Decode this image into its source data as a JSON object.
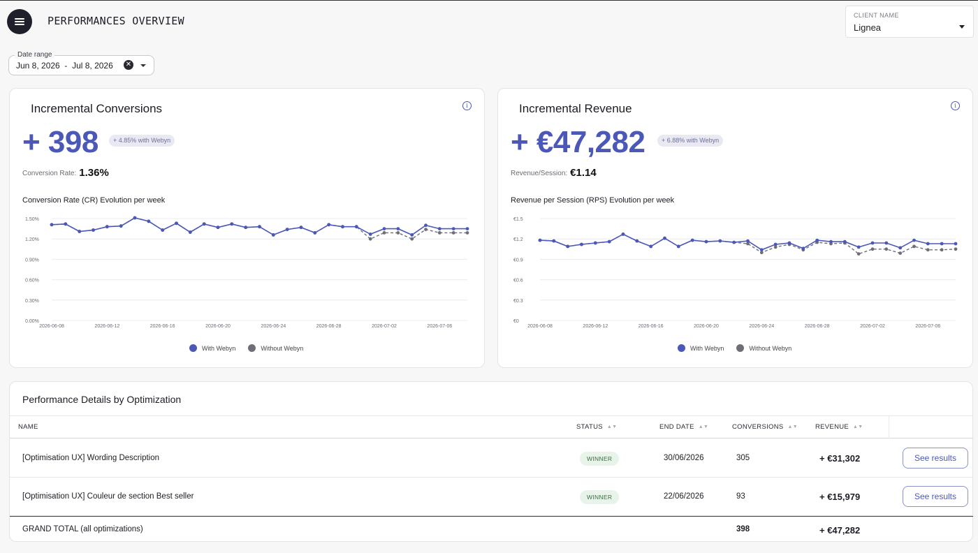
{
  "header": {
    "title": "PERFORMANCES OVERVIEW",
    "client_label": "CLIENT NAME",
    "client_value": "Lignea"
  },
  "date_range": {
    "label": "Date range",
    "start": "Jun 8, 2026",
    "separator": "-",
    "end": "Jul 8, 2026"
  },
  "kpis": [
    {
      "title": "Incremental Conversions",
      "value": "+ 398",
      "badge": "+ 4.85% with Webyn",
      "sub_label": "Conversion Rate:",
      "sub_value": "1.36%",
      "chart_title": "Conversion Rate (CR) Evolution per week"
    },
    {
      "title": "Incremental Revenue",
      "value": "+ €47,282",
      "badge": "+ 6.88% with Webyn",
      "sub_label": "Revenue/Session:",
      "sub_value": "€1.14",
      "chart_title": "Revenue per Session (RPS) Evolution per week"
    }
  ],
  "legend": {
    "with": "With Webyn",
    "without": "Without Webyn"
  },
  "colors": {
    "with": "#4b58b8",
    "without": "#6e6e78",
    "accent": "#4b58b8"
  },
  "chart_data": [
    {
      "type": "line",
      "x": [
        "2026-06-08",
        "2026-06-09",
        "2026-06-10",
        "2026-06-11",
        "2026-06-12",
        "2026-06-13",
        "2026-06-14",
        "2026-06-15",
        "2026-06-16",
        "2026-06-17",
        "2026-06-18",
        "2026-06-19",
        "2026-06-20",
        "2026-06-21",
        "2026-06-22",
        "2026-06-23",
        "2026-06-24",
        "2026-06-25",
        "2026-06-26",
        "2026-06-27",
        "2026-06-28",
        "2026-06-29",
        "2026-06-30",
        "2026-07-01",
        "2026-07-02",
        "2026-07-03",
        "2026-07-04",
        "2026-07-05",
        "2026-07-06",
        "2026-07-07",
        "2026-07-08"
      ],
      "xticks": [
        "2026-06-08",
        "2026-06-12",
        "2026-06-16",
        "2026-06-20",
        "2026-06-24",
        "2026-06-28",
        "2026-07-02",
        "2026-07-06"
      ],
      "yticks": [
        "0.00%",
        "0.30%",
        "0.60%",
        "0.90%",
        "1.20%",
        "1.50%"
      ],
      "ylim": [
        0,
        1.5
      ],
      "series": [
        {
          "name": "With Webyn",
          "values": [
            1.41,
            1.42,
            1.31,
            1.33,
            1.38,
            1.39,
            1.51,
            1.46,
            1.33,
            1.43,
            1.3,
            1.42,
            1.37,
            1.42,
            1.37,
            1.38,
            1.26,
            1.34,
            1.37,
            1.29,
            1.41,
            1.38,
            1.38,
            1.27,
            1.35,
            1.35,
            1.26,
            1.4,
            1.35,
            1.35,
            1.35
          ]
        },
        {
          "name": "Without Webyn",
          "values": [
            1.41,
            1.42,
            1.31,
            1.33,
            1.38,
            1.39,
            1.51,
            1.46,
            1.33,
            1.43,
            1.3,
            1.42,
            1.37,
            1.42,
            1.37,
            1.38,
            1.26,
            1.34,
            1.37,
            1.29,
            1.41,
            1.38,
            1.38,
            1.2,
            1.29,
            1.29,
            1.2,
            1.34,
            1.29,
            1.29,
            1.29
          ]
        }
      ]
    },
    {
      "type": "line",
      "x": [
        "2026-06-08",
        "2026-06-09",
        "2026-06-10",
        "2026-06-11",
        "2026-06-12",
        "2026-06-13",
        "2026-06-14",
        "2026-06-15",
        "2026-06-16",
        "2026-06-17",
        "2026-06-18",
        "2026-06-19",
        "2026-06-20",
        "2026-06-21",
        "2026-06-22",
        "2026-06-23",
        "2026-06-24",
        "2026-06-25",
        "2026-06-26",
        "2026-06-27",
        "2026-06-28",
        "2026-06-29",
        "2026-06-30",
        "2026-07-01",
        "2026-07-02",
        "2026-07-03",
        "2026-07-04",
        "2026-07-05",
        "2026-07-06",
        "2026-07-07",
        "2026-07-08"
      ],
      "xticks": [
        "2026-06-08",
        "2026-06-12",
        "2026-06-16",
        "2026-06-20",
        "2026-06-24",
        "2026-06-28",
        "2026-07-02",
        "2026-07-06"
      ],
      "yticks": [
        "€0",
        "€0.3",
        "€0.6",
        "€0.9",
        "€1.2",
        "€1.5"
      ],
      "ylim": [
        0,
        1.5
      ],
      "series": [
        {
          "name": "With Webyn",
          "values": [
            1.18,
            1.17,
            1.09,
            1.12,
            1.14,
            1.16,
            1.27,
            1.17,
            1.09,
            1.21,
            1.09,
            1.18,
            1.16,
            1.17,
            1.15,
            1.17,
            1.04,
            1.12,
            1.14,
            1.06,
            1.18,
            1.16,
            1.16,
            1.08,
            1.14,
            1.14,
            1.07,
            1.18,
            1.13,
            1.13,
            1.13
          ]
        },
        {
          "name": "Without Webyn",
          "values": [
            1.18,
            1.17,
            1.09,
            1.12,
            1.14,
            1.16,
            1.27,
            1.17,
            1.09,
            1.21,
            1.09,
            1.18,
            1.16,
            1.17,
            1.15,
            1.13,
            1.0,
            1.08,
            1.12,
            1.04,
            1.15,
            1.13,
            1.14,
            0.98,
            1.05,
            1.05,
            0.99,
            1.09,
            1.04,
            1.04,
            1.05
          ]
        }
      ]
    }
  ],
  "table": {
    "title": "Performance Details by Optimization",
    "columns": [
      "NAME",
      "STATUS",
      "END DATE",
      "CONVERSIONS",
      "REVENUE"
    ],
    "rows": [
      {
        "name": "[Optimisation UX] Wording Description",
        "status": "WINNER",
        "end_date": "30/06/2026",
        "conversions": "305",
        "revenue": "+ €31,302",
        "action": "See results"
      },
      {
        "name": "[Optimisation UX] Couleur de section Best seller",
        "status": "WINNER",
        "end_date": "22/06/2026",
        "conversions": "93",
        "revenue": "+ €15,979",
        "action": "See results"
      }
    ],
    "total": {
      "label": "GRAND TOTAL (all optimizations)",
      "conversions": "398",
      "revenue": "+ €47,282"
    }
  }
}
